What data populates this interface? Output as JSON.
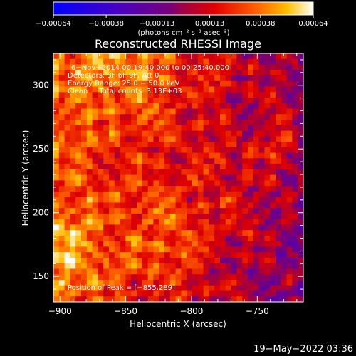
{
  "chart_data": {
    "type": "heatmap",
    "title": "Reconstructed RHESSI Image",
    "xlabel": "Heliocentric X (arcsec)",
    "ylabel": "Heliocentric Y (arcsec)",
    "xlim": [
      -905,
      -715
    ],
    "ylim": [
      130,
      325
    ],
    "x_ticks": [
      -900,
      -850,
      -800,
      -750
    ],
    "y_ticks": [
      150,
      200,
      250,
      300
    ],
    "x_tick_labels": [
      "−900",
      "−850",
      "−800",
      "−750"
    ],
    "y_tick_labels": [
      "150",
      "200",
      "250",
      "300"
    ],
    "colorbar": {
      "range": [
        -0.00064,
        0.00064
      ],
      "tick_values": [
        -0.00064,
        -0.00038,
        -0.00013,
        0.00013,
        0.00038,
        0.00064
      ],
      "tick_labels": [
        "−0.00064",
        "−0.00038",
        "−0.00013",
        "0.00013",
        "0.00038",
        "0.00064"
      ],
      "unit_label": "(photons cm⁻² s⁻¹ asec⁻²)"
    },
    "annotations": [
      "6−Nov−2014 00:19:40.000 to 00:25:40.000",
      "Detectors: 3F 6F 9F, Att 0",
      "Energy Range: 25.0 − 50.0 keV",
      "Clean     Total counts: 3.13E+03"
    ],
    "peak_label": "Position of Peak = [−855,289]",
    "peak_position": [
      -855,
      289
    ]
  },
  "footer": {
    "timestamp": "19−May−2022 03:36"
  }
}
